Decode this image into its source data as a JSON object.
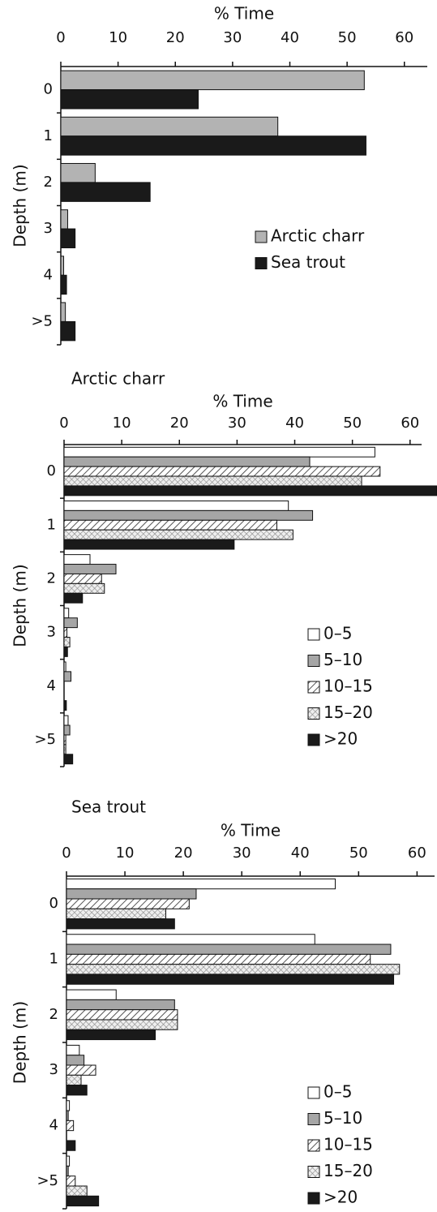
{
  "chart_data": [
    {
      "type": "bar",
      "orientation": "horizontal",
      "xlabel": "% Time",
      "ylabel": "Depth (m)",
      "categories": [
        "0",
        "1",
        "2",
        "3",
        "4",
        ">5"
      ],
      "xlim": [
        0,
        64
      ],
      "xticks": [
        0,
        10,
        20,
        30,
        40,
        50,
        60
      ],
      "series": [
        {
          "name": "Arctic charr",
          "color": "#b3b3b3",
          "pattern": "solid",
          "values": [
            53,
            37.9,
            6,
            1.2,
            0.5,
            0.8
          ]
        },
        {
          "name": "Sea trout",
          "color": "#1a1a1a",
          "pattern": "solid",
          "values": [
            24,
            53.3,
            15.6,
            2.5,
            1,
            2.5
          ]
        }
      ]
    },
    {
      "type": "bar",
      "orientation": "horizontal",
      "subtitle": "Arctic charr",
      "xlabel": "% Time",
      "ylabel": "Depth (m)",
      "categories": [
        "0",
        "1",
        "2",
        "3",
        "4",
        ">5"
      ],
      "xlim": [
        0,
        62
      ],
      "xticks": [
        0,
        10,
        20,
        30,
        40,
        50,
        60
      ],
      "series": [
        {
          "name": "0–5",
          "color": "#ffffff",
          "pattern": "solid",
          "values": [
            53.9,
            38.9,
            4.5,
            0.8,
            0.3,
            0.7
          ]
        },
        {
          "name": "5–10",
          "color": "#a6a6a6",
          "pattern": "solid",
          "values": [
            42.6,
            43.1,
            9,
            2.3,
            1.2,
            1
          ]
        },
        {
          "name": "10–15",
          "color": "#ffffff",
          "pattern": "hatch",
          "values": [
            54.8,
            36.9,
            6.5,
            0.5,
            0,
            0.3
          ]
        },
        {
          "name": "15–20",
          "color": "#ffffff",
          "pattern": "cross",
          "values": [
            51.6,
            39.7,
            7,
            1,
            0,
            0.3
          ]
        },
        {
          "name": ">20",
          "color": "#1a1a1a",
          "pattern": "solid",
          "values": [
            64.6,
            29.5,
            3.2,
            0.6,
            0.4,
            1.5
          ]
        }
      ]
    },
    {
      "type": "bar",
      "orientation": "horizontal",
      "subtitle": "Sea trout",
      "xlabel": "% Time",
      "ylabel": "Depth (m)",
      "categories": [
        "0",
        "1",
        "2",
        "3",
        "4",
        ">5"
      ],
      "xlim": [
        0,
        63
      ],
      "xticks": [
        0,
        10,
        20,
        30,
        40,
        50,
        60
      ],
      "series": [
        {
          "name": "0–5",
          "color": "#ffffff",
          "pattern": "solid",
          "values": [
            46,
            42.5,
            8.5,
            2.2,
            0.5,
            0.5
          ]
        },
        {
          "name": "5–10",
          "color": "#a6a6a6",
          "pattern": "solid",
          "values": [
            22.2,
            55.5,
            18.5,
            3,
            0.3,
            0.3
          ]
        },
        {
          "name": "10–15",
          "color": "#ffffff",
          "pattern": "hatch",
          "values": [
            21,
            52,
            19,
            5,
            1.2,
            1.5
          ]
        },
        {
          "name": "15–20",
          "color": "#ffffff",
          "pattern": "cross",
          "values": [
            17,
            57,
            19,
            2.5,
            0,
            3.5
          ]
        },
        {
          "name": ">20",
          "color": "#1a1a1a",
          "pattern": "solid",
          "values": [
            18.5,
            56,
            15.2,
            3.5,
            1.5,
            5.5
          ]
        }
      ]
    }
  ]
}
